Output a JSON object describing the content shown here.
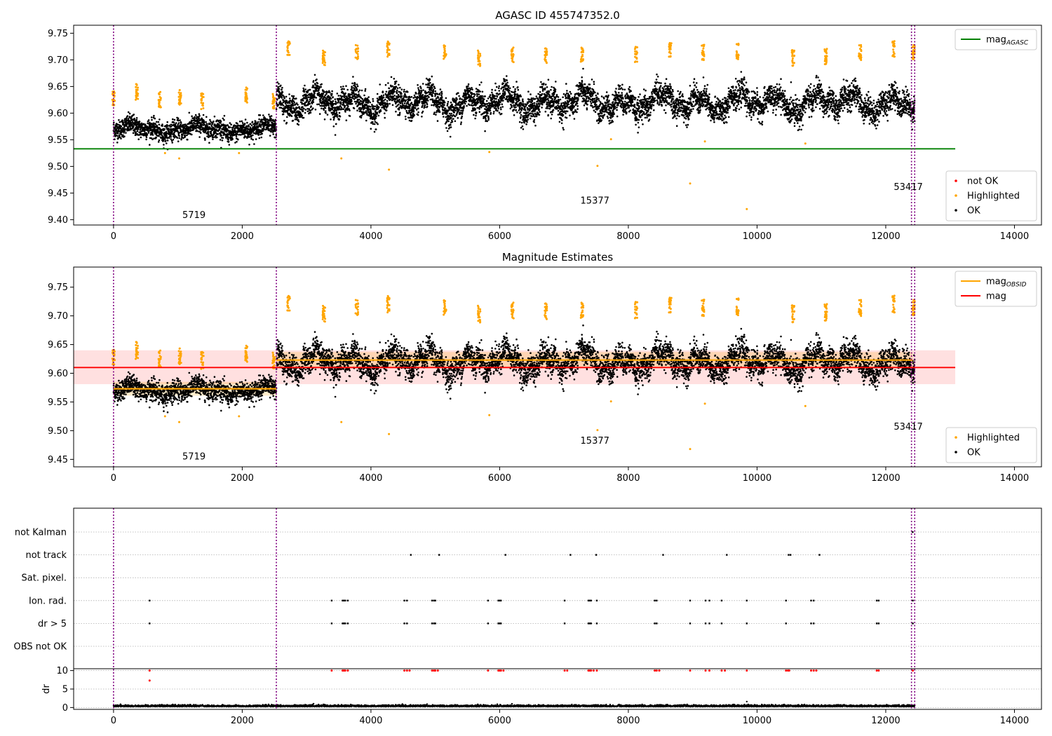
{
  "chart_data": [
    {
      "type": "scatter",
      "title": "AGASC ID 455747352.0",
      "xlim": [
        -620,
        14420
      ],
      "ylim": [
        9.39,
        9.765
      ],
      "xticks": [
        0,
        2000,
        4000,
        6000,
        8000,
        10000,
        12000,
        14000
      ],
      "yticks": [
        9.4,
        9.45,
        9.5,
        9.55,
        9.6,
        9.65,
        9.7,
        9.75
      ],
      "grid": false,
      "legend_top": {
        "position": "top-right",
        "entries": [
          {
            "label": "mag",
            "subscript": "AGASC",
            "color": "#008000"
          }
        ]
      },
      "legend_bottom": {
        "position": "bottom-right",
        "entries": [
          {
            "label": "not OK",
            "color": "#ff0000"
          },
          {
            "label": "Highlighted",
            "color": "#ffa500"
          },
          {
            "label": "OK",
            "color": "#000000"
          }
        ]
      },
      "mag_agasc": {
        "value": 9.533,
        "x_range": [
          -620,
          13080
        ]
      },
      "obsid_boundaries": [
        0,
        2530,
        12400,
        12450
      ],
      "obsid_labels": [
        {
          "text": "5719",
          "x": 1250,
          "y": 9.403
        },
        {
          "text": "15377",
          "x": 7480,
          "y": 9.43
        },
        {
          "text": "53417",
          "x": 12350,
          "y": 9.456
        }
      ]
    },
    {
      "type": "scatter",
      "title": "Magnitude Estimates",
      "xlim": [
        -620,
        14420
      ],
      "ylim": [
        9.437,
        9.785
      ],
      "xticks": [
        0,
        2000,
        4000,
        6000,
        8000,
        10000,
        12000,
        14000
      ],
      "yticks": [
        9.45,
        9.5,
        9.55,
        9.6,
        9.65,
        9.7,
        9.75
      ],
      "grid": false,
      "legend_top": {
        "position": "top-right",
        "entries": [
          {
            "label": "mag",
            "subscript": "OBSID",
            "color": "#ffa500"
          },
          {
            "label": "mag",
            "subscript": "",
            "color": "#ff0000"
          }
        ]
      },
      "legend_bottom": {
        "position": "bottom-right",
        "entries": [
          {
            "label": "Highlighted",
            "color": "#ffa500"
          },
          {
            "label": "OK",
            "color": "#000000"
          }
        ]
      },
      "mag_total": {
        "value": 9.61,
        "band": [
          9.581,
          9.64
        ],
        "x_range": [
          -620,
          13080
        ]
      },
      "mag_obsid": [
        {
          "x_range": [
            0,
            2530
          ],
          "value": 9.573
        },
        {
          "x_range": [
            2530,
            12420
          ],
          "value": 9.623
        }
      ],
      "obsid_boundaries": [
        0,
        2530,
        12400,
        12450
      ],
      "obsid_labels": [
        {
          "text": "5719",
          "x": 1250,
          "y": 9.45
        },
        {
          "text": "15377",
          "x": 7480,
          "y": 9.477
        },
        {
          "text": "53417",
          "x": 12350,
          "y": 9.502
        }
      ]
    },
    {
      "type": "scatter",
      "xlim": [
        -620,
        14420
      ],
      "xticks": [
        0,
        2000,
        4000,
        6000,
        8000,
        10000,
        12000,
        14000
      ],
      "flags": [
        "not Kalman",
        "not track",
        "Sat. pixel.",
        "Ion. rad.",
        "dr > 5",
        "OBS not OK"
      ],
      "flag_points": {
        "not Kalman": [
          12418
        ],
        "not track": [
          4620,
          5060,
          6090,
          7100,
          7500,
          8540,
          9530,
          10490,
          10520,
          10970
        ],
        "Sat. pixel.": [],
        "Ion. rad.": [
          560,
          3390,
          3560,
          3580,
          3600,
          3640,
          4520,
          4560,
          4950,
          4980,
          5000,
          5820,
          5980,
          6000,
          6020,
          7010,
          7380,
          7400,
          7420,
          7510,
          8410,
          8440,
          8960,
          9200,
          9260,
          9450,
          9840,
          10450,
          10840,
          10880,
          11860,
          11890,
          12420
        ],
        "dr > 5": [
          560,
          3390,
          3560,
          3580,
          3600,
          3640,
          4520,
          4560,
          4950,
          4980,
          5000,
          5820,
          5980,
          6000,
          6020,
          7010,
          7380,
          7400,
          7420,
          7510,
          8410,
          8440,
          8960,
          9200,
          9260,
          9450,
          9840,
          10450,
          10840,
          10880,
          11860,
          11890,
          12420
        ],
        "OBS not OK": []
      },
      "dr_ylabel": "dr",
      "dr_ylim": [
        -0.5,
        10.5
      ],
      "dr_yticks": [
        0,
        5,
        10
      ],
      "dr_red_points": [
        560,
        3390,
        3560,
        3580,
        3600,
        3640,
        4520,
        4560,
        4600,
        4950,
        4980,
        5000,
        5040,
        5820,
        5980,
        6000,
        6020,
        6060,
        7010,
        7050,
        7380,
        7400,
        7420,
        7460,
        7510,
        8410,
        8440,
        8480,
        8960,
        9200,
        9260,
        9450,
        9500,
        9840,
        10450,
        10480,
        10500,
        10840,
        10880,
        10920,
        11860,
        11890,
        12420
      ],
      "obsid_boundaries": [
        0,
        2530,
        12400,
        12450
      ]
    }
  ]
}
